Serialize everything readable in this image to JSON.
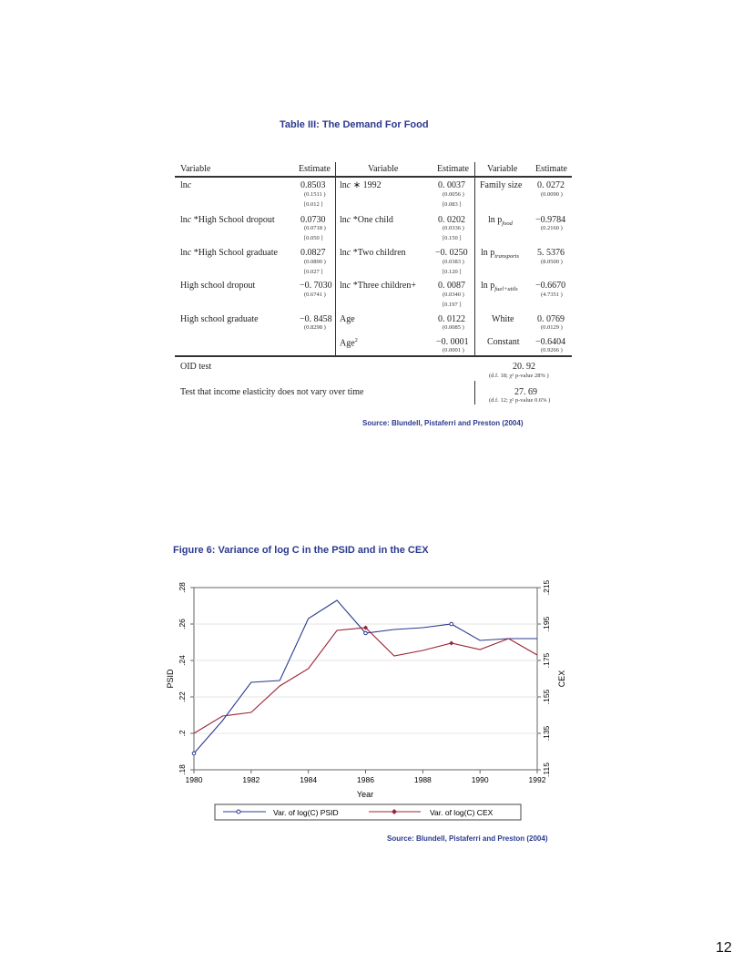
{
  "table": {
    "title": "Table III: The Demand For Food",
    "headers": [
      "Variable",
      "Estimate",
      "Variable",
      "Estimate",
      "Variable",
      "Estimate"
    ],
    "col1": [
      {
        "var_pre": "ln",
        "var_it": "c",
        "var_post": "",
        "est": "0.8503",
        "se": [
          "(0.1511 )",
          "[0.012 ]"
        ]
      },
      {
        "var_pre": "ln",
        "var_it": "c",
        "var_post": " *High School dropout",
        "est": "0.0730",
        "se": [
          "(0.0718 )",
          "[0.050 ]"
        ]
      },
      {
        "var_pre": "ln",
        "var_it": "c",
        "var_post": " *High School graduate",
        "est": "0.0827",
        "se": [
          "(0.0890 )",
          "[0.027 ]"
        ]
      },
      {
        "var_pre": "High school dropout",
        "var_it": "",
        "var_post": "",
        "est": "−0. 7030",
        "se": [
          "(0.6741 )"
        ]
      },
      {
        "var_pre": "High school graduate",
        "var_it": "",
        "var_post": "",
        "est": "−0. 8458",
        "se": [
          "(0.8298 )"
        ]
      }
    ],
    "col2": [
      {
        "var_pre": "ln",
        "var_it": "c",
        "var_post": " ∗ 1992",
        "est": "0. 0037",
        "se": [
          "(0.0056 )",
          "[0.083 ]"
        ]
      },
      {
        "var_pre": "ln",
        "var_it": "c",
        "var_post": " *One child",
        "est": "0. 0202",
        "se": [
          "(0.0336 )",
          "[0.150 ]"
        ]
      },
      {
        "var_pre": "ln",
        "var_it": "c",
        "var_post": " *Two children",
        "est": "−0. 0250",
        "se": [
          "(0.0383 )",
          "[0.120 ]"
        ]
      },
      {
        "var_pre": "ln",
        "var_it": "c",
        "var_post": " *Three children+",
        "est": "0. 0087",
        "se": [
          "(0.0340 )",
          "[0.197 ]"
        ]
      },
      {
        "var_pre": "Age",
        "var_it": "",
        "var_post": "",
        "est": "0. 0122",
        "se": [
          "(0.0085 )"
        ]
      },
      {
        "var_pre": "Age",
        "var_it": "",
        "var_post": "2",
        "est": "−0. 0001",
        "se": [
          "(0.0001 )"
        ]
      }
    ],
    "col3": [
      {
        "var": "Family size",
        "sub": "",
        "est": "0. 0272",
        "se": "(0.0090 )"
      },
      {
        "var": "ln p",
        "sub": "food",
        "est": "−0.9784",
        "se": "(0.2160 )"
      },
      {
        "var": "ln p",
        "sub": "transports",
        "est": "5. 5376",
        "se": "(8.0500 )"
      },
      {
        "var": "ln p",
        "sub": "fuel+utils",
        "est": "−0.6670",
        "se": "(4.7351 )"
      },
      {
        "var": "White",
        "sub": "",
        "est": "0. 0769",
        "se": "(0.0129 )"
      },
      {
        "var": "Constant",
        "sub": "",
        "est": "−0.6404",
        "se": "(0.9266 )"
      }
    ],
    "oid_label": "OID test",
    "oid_value": "20. 92",
    "oid_note": "(d.f. 18; χ² p-value 28% )",
    "elas_label": "Test that income elasticity does not vary over time",
    "elas_value": "27. 69",
    "elas_note": "(d.f. 12; χ² p-value 0.6% )",
    "source": "Source: Blundell, Pistaferri and Preston (2004)"
  },
  "figure": {
    "title": "Figure 6: Variance of log C in the PSID and in the CEX",
    "source": "Source: Blundell, Pistaferri and Preston (2004)"
  },
  "chart_data": {
    "type": "line",
    "title": "Figure 6: Variance of log C in the PSID and in the CEX",
    "xlabel": "Year",
    "ylabel": "PSID",
    "y2label": "CEX",
    "x": [
      1980,
      1981,
      1982,
      1983,
      1984,
      1985,
      1986,
      1987,
      1988,
      1989,
      1990,
      1991,
      1992
    ],
    "xlim": [
      1980,
      1992
    ],
    "xticks": [
      "1980",
      "1982",
      "1984",
      "1986",
      "1988",
      "1990",
      "1992"
    ],
    "ylim": [
      0.18,
      0.28
    ],
    "yticks": [
      ".18",
      ".2",
      ".22",
      ".24",
      ".26",
      ".28"
    ],
    "y2lim": [
      0.115,
      0.215
    ],
    "y2ticks": [
      ".115",
      ".135",
      ".155",
      ".175",
      ".195",
      ".215"
    ],
    "grid": true,
    "legend_position": "bottom",
    "series": [
      {
        "name": "Var. of log(C) PSID",
        "axis": "left",
        "color": "#2b3a8f",
        "marker": "circle",
        "values": [
          0.189,
          0.207,
          0.228,
          0.229,
          0.263,
          0.273,
          0.255,
          0.257,
          0.258,
          0.26,
          0.251,
          0.252,
          0.252
        ]
      },
      {
        "name": "Var. of log(C) CEX",
        "axis": "right",
        "color": "#9b2335",
        "marker": "diamond",
        "values": [
          0.135,
          0.1445,
          0.1465,
          0.161,
          0.1705,
          0.1915,
          0.193,
          0.1775,
          0.1805,
          0.1845,
          0.181,
          0.187,
          0.178
        ]
      }
    ],
    "marked_points": {
      "PSID": [
        1980,
        1986,
        1989
      ],
      "CEX": [
        1986,
        1989
      ]
    }
  },
  "page_number": "12"
}
